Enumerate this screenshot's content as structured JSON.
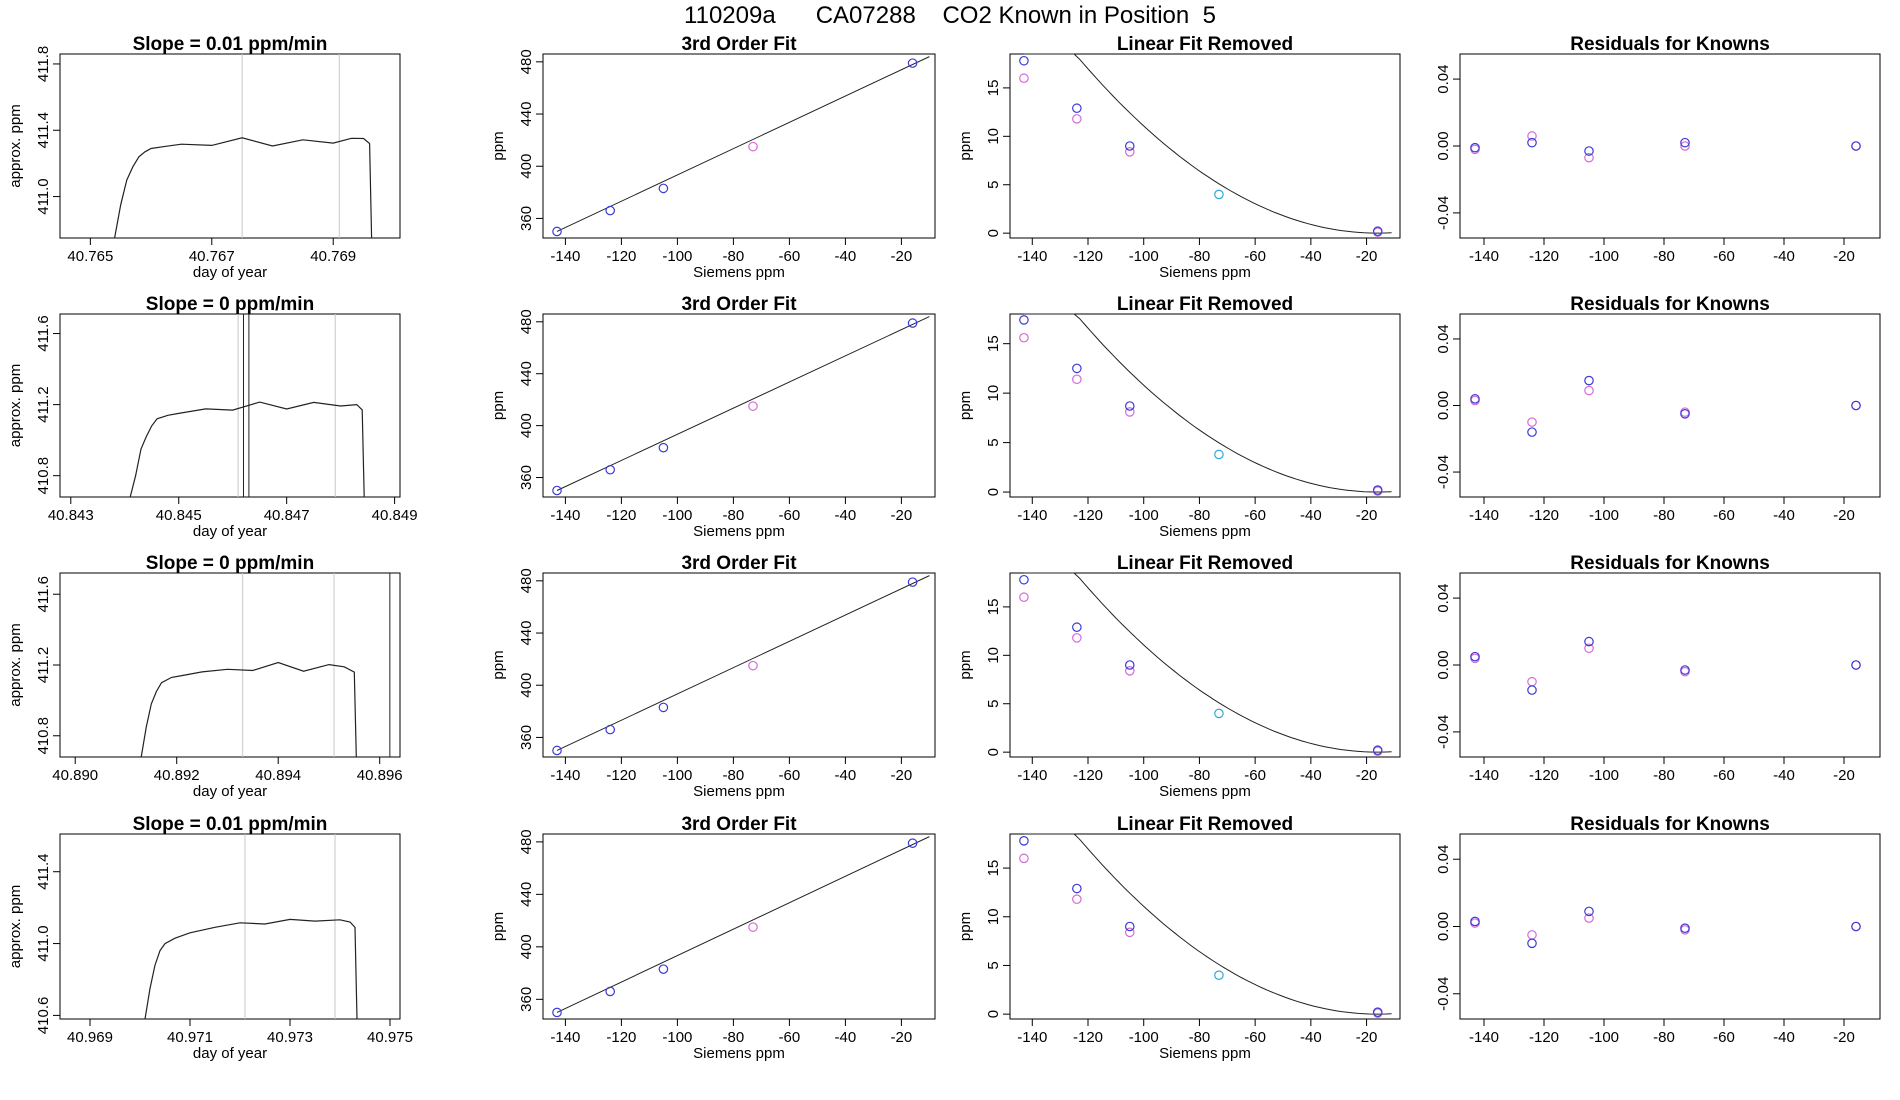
{
  "title": "110209a      CA07288    CO2 Known in Position  5",
  "colors": {
    "fit_marker": "#3a3ad6",
    "known_marker": "#d66ad6",
    "cyan_marker": "#2ea8d8",
    "line": "#222222",
    "guide": "#c8c8c8"
  },
  "chart_data": [
    {
      "type": "line",
      "panel": "trace-1",
      "title": "Slope =  0.01  ppm/min",
      "xlabel": "day of year",
      "ylabel": "approx. ppm",
      "xlim": [
        40.7645,
        40.7701
      ],
      "ylim": [
        410.75,
        411.86
      ],
      "xticks": [
        "40.765",
        "40.767",
        "40.769"
      ],
      "xtick_values": [
        40.765,
        40.767,
        40.769
      ],
      "yticks": [
        "411.0",
        "411.4",
        "411.8"
      ],
      "ytick_values": [
        411.0,
        411.4,
        411.8
      ],
      "vlines": [
        40.7675,
        40.7691
      ],
      "end_x": 40.7696,
      "x": [
        40.7654,
        40.7655,
        40.7656,
        40.7657,
        40.7658,
        40.7659,
        40.766,
        40.7662,
        40.7665,
        40.767,
        40.7675,
        40.768,
        40.7685,
        40.769,
        40.7693,
        40.7695
      ],
      "y": [
        410.75,
        410.95,
        411.1,
        411.18,
        411.24,
        411.27,
        411.29,
        411.3,
        411.31,
        411.32,
        411.34,
        411.32,
        411.33,
        411.33,
        411.35,
        411.35
      ]
    },
    {
      "type": "scatter",
      "panel": "fit-1",
      "title": "3rd Order Fit",
      "xlabel": "Siemens ppm",
      "ylabel": "ppm",
      "xlim": [
        -148,
        -8
      ],
      "ylim": [
        345,
        486
      ],
      "xticks": [
        "-140",
        "-120",
        "-100",
        "-80",
        "-60",
        "-40",
        "-20"
      ],
      "xtick_values": [
        -140,
        -120,
        -100,
        -80,
        -60,
        -40,
        -20
      ],
      "yticks": [
        "360",
        "400",
        "440",
        "480"
      ],
      "ytick_values": [
        360,
        400,
        440,
        480
      ],
      "curve": [
        [
          -143,
          350
        ],
        [
          -10,
          484
        ]
      ],
      "fit_points": [
        [
          -143,
          350
        ],
        [
          -124,
          366
        ],
        [
          -105,
          383
        ],
        [
          -16,
          479
        ]
      ],
      "known_points": [
        [
          -73,
          415
        ]
      ]
    },
    {
      "type": "scatter",
      "panel": "lin-1",
      "title": "Linear Fit Removed",
      "xlabel": "Siemens ppm",
      "ylabel": "ppm",
      "xlim": [
        -148,
        -8
      ],
      "ylim": [
        -0.5,
        18.5
      ],
      "xticks": [
        "-140",
        "-120",
        "-100",
        "-80",
        "-60",
        "-40",
        "-20"
      ],
      "xtick_values": [
        -140,
        -120,
        -100,
        -80,
        -60,
        -40,
        -20
      ],
      "yticks": [
        "0",
        "5",
        "10",
        "15"
      ],
      "ytick_values": [
        0,
        5,
        10,
        15
      ],
      "curve_coeffs": [
        -16,
        0.1,
        -8e-05,
        25.3
      ],
      "fit_points": [
        [
          -143,
          17.8
        ],
        [
          -124,
          12.9
        ],
        [
          -105,
          9.0
        ],
        [
          -16,
          0.2
        ]
      ],
      "known_points": [
        [
          -143,
          16.0
        ],
        [
          -124,
          11.8
        ],
        [
          -105,
          8.4
        ],
        [
          -16,
          0.1
        ]
      ],
      "cyan_points": [
        [
          -73,
          4.0
        ]
      ]
    },
    {
      "type": "scatter",
      "panel": "res-1",
      "title": "Residuals for Knowns",
      "xlim": [
        -148,
        -8
      ],
      "ylim": [
        -0.055,
        0.055
      ],
      "xticks": [
        "-140",
        "-120",
        "-100",
        "-80",
        "-60",
        "-40",
        "-20"
      ],
      "xtick_values": [
        -140,
        -120,
        -100,
        -80,
        -60,
        -40,
        -20
      ],
      "yticks": [
        "-0.04",
        "0.00",
        "0.04"
      ],
      "ytick_values": [
        -0.04,
        0,
        0.04
      ],
      "fit_points": [
        [
          -143,
          -0.001
        ],
        [
          -124,
          0.002
        ],
        [
          -105,
          -0.003
        ],
        [
          -73,
          0.002
        ],
        [
          -16,
          0.0
        ]
      ],
      "known_points": [
        [
          -143,
          -0.002
        ],
        [
          -124,
          0.006
        ],
        [
          -105,
          -0.007
        ],
        [
          -73,
          0.0
        ],
        [
          -16,
          0.0
        ]
      ]
    },
    {
      "type": "line",
      "panel": "trace-2",
      "title": "Slope =  0  ppm/min",
      "xlabel": "day of year",
      "ylabel": "approx. ppm",
      "xlim": [
        40.8428,
        40.8491
      ],
      "ylim": [
        410.68,
        411.71
      ],
      "xticks": [
        "40.843",
        "40.845",
        "40.847",
        "40.849"
      ],
      "xtick_values": [
        40.843,
        40.845,
        40.847,
        40.849
      ],
      "yticks": [
        "410.8",
        "411.2",
        "411.6"
      ],
      "ytick_values": [
        410.8,
        411.2,
        411.6
      ],
      "vlines": [
        40.8461,
        40.8479
      ],
      "spike_x": [
        40.8462,
        40.8463
      ],
      "end_x": 40.8484,
      "x": [
        40.8441,
        40.8442,
        40.8443,
        40.8444,
        40.8445,
        40.8446,
        40.8448,
        40.845,
        40.8455,
        40.846,
        40.8465,
        40.847,
        40.8475,
        40.848,
        40.8483
      ],
      "y": [
        410.68,
        410.8,
        410.95,
        411.02,
        411.08,
        411.12,
        411.14,
        411.15,
        411.17,
        411.18,
        411.2,
        411.19,
        411.2,
        411.2,
        411.2
      ]
    },
    {
      "type": "scatter",
      "panel": "fit-2",
      "title": "3rd Order Fit",
      "xlabel": "Siemens ppm",
      "ylabel": "ppm",
      "xlim": [
        -148,
        -8
      ],
      "ylim": [
        345,
        486
      ],
      "xticks": [
        "-140",
        "-120",
        "-100",
        "-80",
        "-60",
        "-40",
        "-20"
      ],
      "xtick_values": [
        -140,
        -120,
        -100,
        -80,
        -60,
        -40,
        -20
      ],
      "yticks": [
        "360",
        "400",
        "440",
        "480"
      ],
      "ytick_values": [
        360,
        400,
        440,
        480
      ],
      "curve": [
        [
          -143,
          350
        ],
        [
          -10,
          484
        ]
      ],
      "fit_points": [
        [
          -143,
          350
        ],
        [
          -124,
          366
        ],
        [
          -105,
          383
        ],
        [
          -16,
          479
        ]
      ],
      "known_points": [
        [
          -73,
          415
        ]
      ]
    },
    {
      "type": "scatter",
      "panel": "lin-2",
      "title": "Linear Fit Removed",
      "xlabel": "Siemens ppm",
      "ylabel": "ppm",
      "xlim": [
        -148,
        -8
      ],
      "ylim": [
        -0.5,
        18.0
      ],
      "xticks": [
        "-140",
        "-120",
        "-100",
        "-80",
        "-60",
        "-40",
        "-20"
      ],
      "xtick_values": [
        -140,
        -120,
        -100,
        -80,
        -60,
        -40,
        -20
      ],
      "yticks": [
        "0",
        "5",
        "10",
        "15"
      ],
      "ytick_values": [
        0,
        5,
        10,
        15
      ],
      "curve_coeffs": [
        -16,
        0.1,
        -8e-05,
        24.7
      ],
      "fit_points": [
        [
          -143,
          17.4
        ],
        [
          -124,
          12.5
        ],
        [
          -105,
          8.7
        ],
        [
          -16,
          0.2
        ]
      ],
      "known_points": [
        [
          -143,
          15.6
        ],
        [
          -124,
          11.4
        ],
        [
          -105,
          8.1
        ],
        [
          -16,
          0.1
        ]
      ],
      "cyan_points": [
        [
          -73,
          3.8
        ]
      ]
    },
    {
      "type": "scatter",
      "panel": "res-2",
      "title": "Residuals for Knowns",
      "xlim": [
        -148,
        -8
      ],
      "ylim": [
        -0.055,
        0.055
      ],
      "xticks": [
        "-140",
        "-120",
        "-100",
        "-80",
        "-60",
        "-40",
        "-20"
      ],
      "xtick_values": [
        -140,
        -120,
        -100,
        -80,
        -60,
        -40,
        -20
      ],
      "yticks": [
        "-0.04",
        "0.00",
        "0.04"
      ],
      "ytick_values": [
        -0.04,
        0,
        0.04
      ],
      "fit_points": [
        [
          -143,
          0.004
        ],
        [
          -124,
          -0.016
        ],
        [
          -105,
          0.015
        ],
        [
          -73,
          -0.005
        ],
        [
          -16,
          0.0
        ]
      ],
      "known_points": [
        [
          -143,
          0.003
        ],
        [
          -124,
          -0.01
        ],
        [
          -105,
          0.009
        ],
        [
          -73,
          -0.004
        ],
        [
          -16,
          0.0
        ]
      ]
    },
    {
      "type": "line",
      "panel": "trace-3",
      "title": "Slope =  0  ppm/min",
      "xlabel": "day of year",
      "ylabel": "approx. ppm",
      "xlim": [
        40.8897,
        40.8964
      ],
      "ylim": [
        410.68,
        411.72
      ],
      "xticks": [
        "40.890",
        "40.892",
        "40.894",
        "40.896"
      ],
      "xtick_values": [
        40.89,
        40.892,
        40.894,
        40.896
      ],
      "yticks": [
        "410.8",
        "411.2",
        "411.6"
      ],
      "ytick_values": [
        410.8,
        411.2,
        411.6
      ],
      "vlines": [
        40.8933,
        40.8951
      ],
      "spike_x": [
        40.8962
      ],
      "end_x": 40.8955,
      "x": [
        40.8913,
        40.8914,
        40.8915,
        40.8916,
        40.8917,
        40.8919,
        40.8921,
        40.8925,
        40.893,
        40.8935,
        40.894,
        40.8945,
        40.895,
        40.8953
      ],
      "y": [
        410.68,
        410.85,
        410.98,
        411.05,
        411.1,
        411.13,
        411.14,
        411.16,
        411.17,
        411.18,
        411.2,
        411.18,
        411.19,
        411.19
      ]
    },
    {
      "type": "scatter",
      "panel": "fit-3",
      "title": "3rd Order Fit",
      "xlabel": "Siemens ppm",
      "ylabel": "ppm",
      "xlim": [
        -148,
        -8
      ],
      "ylim": [
        345,
        486
      ],
      "xticks": [
        "-140",
        "-120",
        "-100",
        "-80",
        "-60",
        "-40",
        "-20"
      ],
      "xtick_values": [
        -140,
        -120,
        -100,
        -80,
        -60,
        -40,
        -20
      ],
      "yticks": [
        "360",
        "400",
        "440",
        "480"
      ],
      "ytick_values": [
        360,
        400,
        440,
        480
      ],
      "curve": [
        [
          -143,
          350
        ],
        [
          -10,
          484
        ]
      ],
      "fit_points": [
        [
          -143,
          350
        ],
        [
          -124,
          366
        ],
        [
          -105,
          383
        ],
        [
          -16,
          479
        ]
      ],
      "known_points": [
        [
          -73,
          415
        ]
      ]
    },
    {
      "type": "scatter",
      "panel": "lin-3",
      "title": "Linear Fit Removed",
      "xlabel": "Siemens ppm",
      "ylabel": "ppm",
      "xlim": [
        -148,
        -8
      ],
      "ylim": [
        -0.5,
        18.5
      ],
      "xticks": [
        "-140",
        "-120",
        "-100",
        "-80",
        "-60",
        "-40",
        "-20"
      ],
      "xtick_values": [
        -140,
        -120,
        -100,
        -80,
        -60,
        -40,
        -20
      ],
      "yticks": [
        "0",
        "5",
        "10",
        "15"
      ],
      "ytick_values": [
        0,
        5,
        10,
        15
      ],
      "curve_coeffs": [
        -16,
        0.1,
        -8e-05,
        25.3
      ],
      "fit_points": [
        [
          -143,
          17.8
        ],
        [
          -124,
          12.9
        ],
        [
          -105,
          9.0
        ],
        [
          -16,
          0.2
        ]
      ],
      "known_points": [
        [
          -143,
          16.0
        ],
        [
          -124,
          11.8
        ],
        [
          -105,
          8.4
        ],
        [
          -16,
          0.1
        ]
      ],
      "cyan_points": [
        [
          -73,
          4.0
        ]
      ]
    },
    {
      "type": "scatter",
      "panel": "res-3",
      "title": "Residuals for Knowns",
      "xlim": [
        -148,
        -8
      ],
      "ylim": [
        -0.055,
        0.055
      ],
      "xticks": [
        "-140",
        "-120",
        "-100",
        "-80",
        "-60",
        "-40",
        "-20"
      ],
      "xtick_values": [
        -140,
        -120,
        -100,
        -80,
        -60,
        -40,
        -20
      ],
      "yticks": [
        "-0.04",
        "0.00",
        "0.04"
      ],
      "ytick_values": [
        -0.04,
        0,
        0.04
      ],
      "fit_points": [
        [
          -143,
          0.005
        ],
        [
          -124,
          -0.015
        ],
        [
          -105,
          0.014
        ],
        [
          -73,
          -0.003
        ],
        [
          -16,
          0.0
        ]
      ],
      "known_points": [
        [
          -143,
          0.004
        ],
        [
          -124,
          -0.01
        ],
        [
          -105,
          0.01
        ],
        [
          -73,
          -0.004
        ],
        [
          -16,
          0.0
        ]
      ]
    },
    {
      "type": "line",
      "panel": "trace-4",
      "title": "Slope =  0.01  ppm/min",
      "xlabel": "day of year",
      "ylabel": "approx. ppm",
      "xlim": [
        40.9684,
        40.9752
      ],
      "ylim": [
        410.58,
        411.61
      ],
      "xticks": [
        "40.969",
        "40.971",
        "40.973",
        "40.975"
      ],
      "xtick_values": [
        40.969,
        40.971,
        40.973,
        40.975
      ],
      "yticks": [
        "410.6",
        "411.0",
        "411.4"
      ],
      "ytick_values": [
        410.6,
        411.0,
        411.4
      ],
      "vlines": [
        40.9721,
        40.9739
      ],
      "end_x": 40.9743,
      "x": [
        40.9701,
        40.9702,
        40.9703,
        40.9704,
        40.9705,
        40.9707,
        40.971,
        40.9715,
        40.972,
        40.9725,
        40.973,
        40.9735,
        40.974,
        40.9742
      ],
      "y": [
        410.58,
        410.75,
        410.88,
        410.96,
        411.0,
        411.03,
        411.06,
        411.09,
        411.11,
        411.12,
        411.12,
        411.14,
        411.12,
        411.12
      ]
    },
    {
      "type": "scatter",
      "panel": "fit-4",
      "title": "3rd Order Fit",
      "xlabel": "Siemens ppm",
      "ylabel": "ppm",
      "xlim": [
        -148,
        -8
      ],
      "ylim": [
        345,
        486
      ],
      "xticks": [
        "-140",
        "-120",
        "-100",
        "-80",
        "-60",
        "-40",
        "-20"
      ],
      "xtick_values": [
        -140,
        -120,
        -100,
        -80,
        -60,
        -40,
        -20
      ],
      "yticks": [
        "360",
        "400",
        "440",
        "480"
      ],
      "ytick_values": [
        360,
        400,
        440,
        480
      ],
      "curve": [
        [
          -143,
          350
        ],
        [
          -10,
          484
        ]
      ],
      "fit_points": [
        [
          -143,
          350
        ],
        [
          -124,
          366
        ],
        [
          -105,
          383
        ],
        [
          -16,
          479
        ]
      ],
      "known_points": [
        [
          -73,
          415
        ]
      ]
    },
    {
      "type": "scatter",
      "panel": "lin-4",
      "title": "Linear Fit Removed",
      "xlabel": "Siemens ppm",
      "ylabel": "ppm",
      "xlim": [
        -148,
        -8
      ],
      "ylim": [
        -0.5,
        18.5
      ],
      "xticks": [
        "-140",
        "-120",
        "-100",
        "-80",
        "-60",
        "-40",
        "-20"
      ],
      "xtick_values": [
        -140,
        -120,
        -100,
        -80,
        -60,
        -40,
        -20
      ],
      "yticks": [
        "0",
        "5",
        "10",
        "15"
      ],
      "ytick_values": [
        0,
        5,
        10,
        15
      ],
      "curve_coeffs": [
        -16,
        0.1,
        -8e-05,
        25.3
      ],
      "fit_points": [
        [
          -143,
          17.8
        ],
        [
          -124,
          12.9
        ],
        [
          -105,
          9.0
        ],
        [
          -16,
          0.2
        ]
      ],
      "known_points": [
        [
          -143,
          16.0
        ],
        [
          -124,
          11.8
        ],
        [
          -105,
          8.4
        ],
        [
          -16,
          0.1
        ]
      ],
      "cyan_points": [
        [
          -73,
          4.0
        ]
      ]
    },
    {
      "type": "scatter",
      "panel": "res-4",
      "title": "Residuals for Knowns",
      "xlim": [
        -148,
        -8
      ],
      "ylim": [
        -0.055,
        0.055
      ],
      "xticks": [
        "-140",
        "-120",
        "-100",
        "-80",
        "-60",
        "-40",
        "-20"
      ],
      "xtick_values": [
        -140,
        -120,
        -100,
        -80,
        -60,
        -40,
        -20
      ],
      "yticks": [
        "-0.04",
        "0.00",
        "0.04"
      ],
      "ytick_values": [
        -0.04,
        0,
        0.04
      ],
      "fit_points": [
        [
          -143,
          0.003
        ],
        [
          -124,
          -0.01
        ],
        [
          -105,
          0.009
        ],
        [
          -73,
          -0.001
        ],
        [
          -16,
          0.0
        ]
      ],
      "known_points": [
        [
          -143,
          0.002
        ],
        [
          -124,
          -0.005
        ],
        [
          -105,
          0.005
        ],
        [
          -73,
          -0.002
        ],
        [
          -16,
          0.0
        ]
      ]
    }
  ]
}
